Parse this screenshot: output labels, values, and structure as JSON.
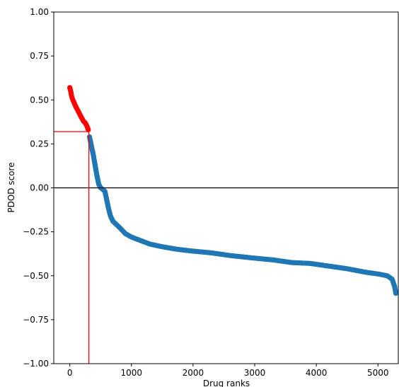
{
  "chart_data": {
    "type": "scatter",
    "title": "",
    "xlabel": "Drug ranks",
    "ylabel": "PDOD score",
    "xlim": [
      -260,
      5330
    ],
    "ylim": [
      -1.0,
      1.0
    ],
    "xticks": [
      0,
      1000,
      2000,
      3000,
      4000,
      5000
    ],
    "xtick_labels": [
      "0",
      "1000",
      "2000",
      "3000",
      "4000",
      "5000"
    ],
    "yticks": [
      -1.0,
      -0.75,
      -0.5,
      -0.25,
      0.0,
      0.25,
      0.5,
      0.75,
      1.0
    ],
    "ytick_labels": [
      "−1.00",
      "−0.75",
      "−0.50",
      "−0.25",
      "0.00",
      "0.25",
      "0.50",
      "0.75",
      "1.00"
    ],
    "grid": false,
    "reference_lines": {
      "horizontal_zero": 0.0,
      "threshold_rank": 310,
      "threshold_score": 0.32
    },
    "colors": {
      "above_threshold": "#ff0000",
      "below_threshold": "#1f77b4",
      "zero_line": "#000000",
      "threshold_lines": "#ff0000"
    },
    "series": [
      {
        "color": "#ff0000",
        "points": [
          [
            0,
            0.57
          ],
          [
            15,
            0.55
          ],
          [
            30,
            0.52
          ],
          [
            50,
            0.5
          ],
          [
            75,
            0.48
          ],
          [
            100,
            0.46
          ],
          [
            130,
            0.44
          ],
          [
            160,
            0.42
          ],
          [
            190,
            0.4
          ],
          [
            220,
            0.38
          ],
          [
            250,
            0.37
          ],
          [
            280,
            0.35
          ],
          [
            300,
            0.33
          ]
        ]
      },
      {
        "color": "#1f77b4",
        "points": [
          [
            320,
            0.29
          ],
          [
            350,
            0.24
          ],
          [
            380,
            0.19
          ],
          [
            410,
            0.13
          ],
          [
            440,
            0.07
          ],
          [
            470,
            0.02
          ],
          [
            500,
            0.0
          ],
          [
            540,
            -0.01
          ],
          [
            570,
            -0.02
          ],
          [
            600,
            -0.07
          ],
          [
            630,
            -0.12
          ],
          [
            660,
            -0.16
          ],
          [
            700,
            -0.19
          ],
          [
            760,
            -0.21
          ],
          [
            820,
            -0.23
          ],
          [
            900,
            -0.26
          ],
          [
            1000,
            -0.28
          ],
          [
            1150,
            -0.3
          ],
          [
            1300,
            -0.32
          ],
          [
            1500,
            -0.335
          ],
          [
            1750,
            -0.35
          ],
          [
            2000,
            -0.36
          ],
          [
            2300,
            -0.37
          ],
          [
            2600,
            -0.385
          ],
          [
            3000,
            -0.4
          ],
          [
            3300,
            -0.41
          ],
          [
            3600,
            -0.425
          ],
          [
            3900,
            -0.43
          ],
          [
            4200,
            -0.445
          ],
          [
            4500,
            -0.46
          ],
          [
            4800,
            -0.48
          ],
          [
            5000,
            -0.49
          ],
          [
            5150,
            -0.5
          ],
          [
            5230,
            -0.52
          ],
          [
            5270,
            -0.56
          ],
          [
            5290,
            -0.6
          ]
        ]
      }
    ]
  }
}
